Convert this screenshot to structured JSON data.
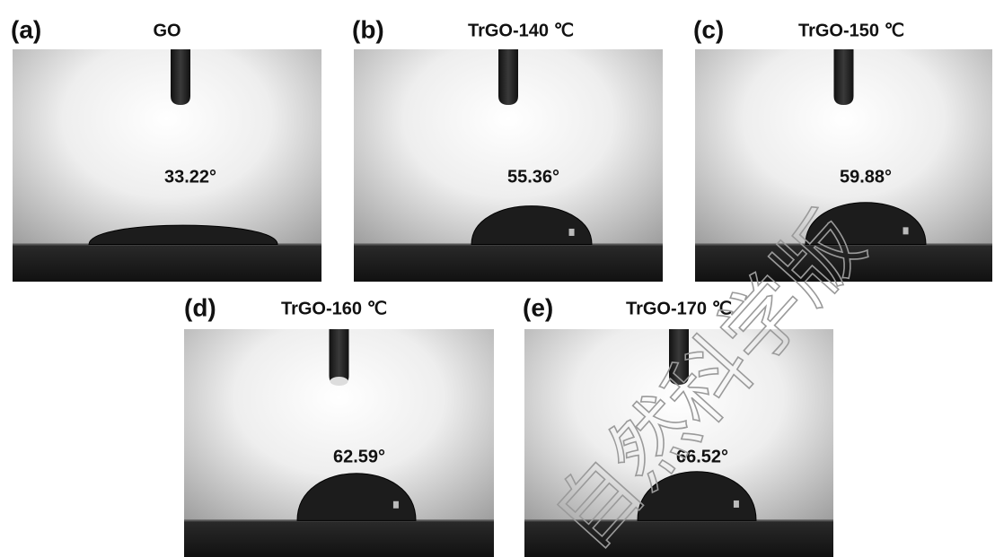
{
  "panels": [
    {
      "label": "(a)",
      "title": "GO",
      "angle": "33.22°"
    },
    {
      "label": "(b)",
      "title": "TrGO-140 ℃",
      "angle": "55.36°"
    },
    {
      "label": "(c)",
      "title": "TrGO-150 ℃",
      "angle": "59.88°"
    },
    {
      "label": "(d)",
      "title": "TrGO-160 ℃",
      "angle": "62.59°"
    },
    {
      "label": "(e)",
      "title": "TrGO-170 ℃",
      "angle": "66.52°"
    }
  ],
  "watermark": "自然科学版"
}
